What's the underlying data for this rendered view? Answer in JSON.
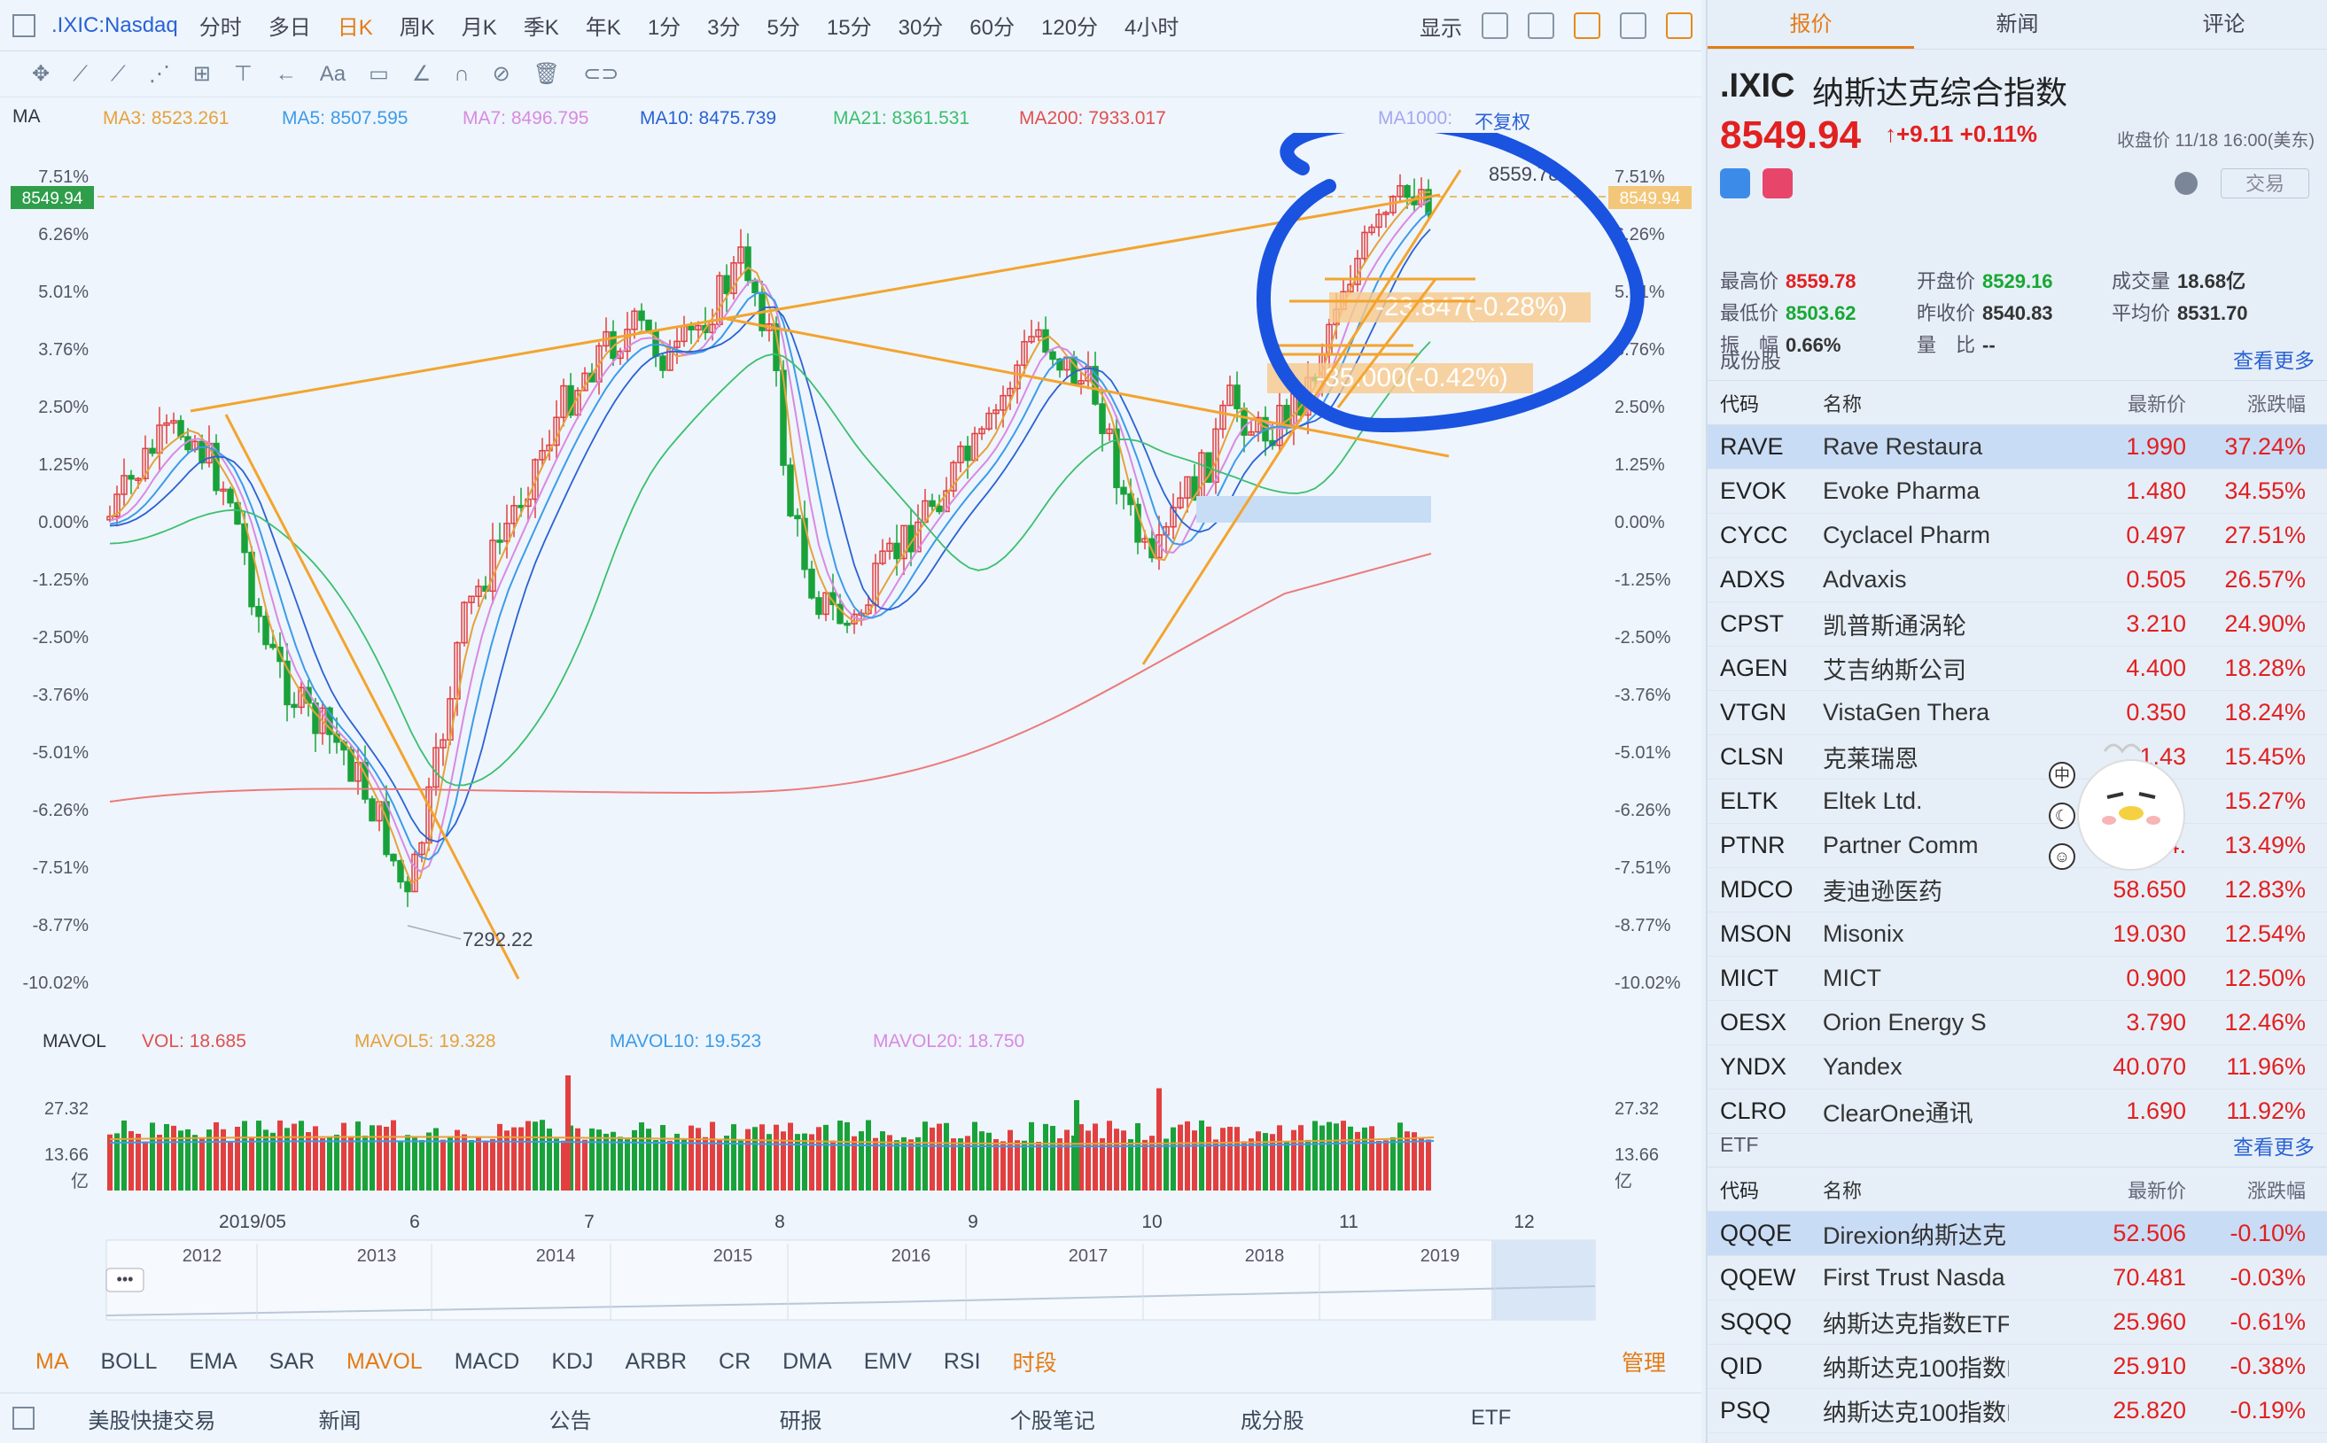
{
  "toolbar": {
    "symbol": ".IXIC:Nasdaq",
    "periods": [
      "分时",
      "多日",
      "日K",
      "周K",
      "月K",
      "季K",
      "年K",
      "1分",
      "3分",
      "5分",
      "15分",
      "30分",
      "60分",
      "120分",
      "4小时"
    ],
    "active_period": "日K",
    "display_label": "显示"
  },
  "draw_tools": [
    "✥",
    "⟋",
    "⟋",
    "⋰",
    "⊞",
    "⊤",
    "←",
    "Aa",
    "▭",
    "∠",
    "∩",
    "⊘",
    "🗑",
    "⊂⊃"
  ],
  "ma": {
    "label": "MA",
    "items": [
      {
        "t": "MA3: 8523.261",
        "c": "#e6a23c"
      },
      {
        "t": "MA5: 8507.595",
        "c": "#3d9be9"
      },
      {
        "t": "MA7: 8496.795",
        "c": "#d98ae0"
      },
      {
        "t": "MA10: 8475.739",
        "c": "#2a62d4"
      },
      {
        "t": "MA21: 8361.531",
        "c": "#3cbf6e"
      },
      {
        "t": "MA200: 7933.017",
        "c": "#e05050"
      },
      {
        "t": "MA1000:",
        "c": "#a3a8f0"
      },
      {
        "t": "不复权",
        "c": "#2a62d4"
      }
    ]
  },
  "chart": {
    "y_axis": [
      "7.51%",
      "6.26%",
      "5.01%",
      "3.76%",
      "2.50%",
      "1.25%",
      "0.00%",
      "-1.25%",
      "-2.50%",
      "-3.76%",
      "-5.01%",
      "-6.26%",
      "-7.51%",
      "-8.77%",
      "-10.02%"
    ],
    "current_price": "8549.94",
    "high_label": "8559.78",
    "low_label": "7292.22",
    "fib1": "-23.847(-0.28%)",
    "fib2": "-35.000(-0.42%)"
  },
  "vol": {
    "label": "MAVOL",
    "items": [
      {
        "t": "VOL: 18.685",
        "c": "#e05050"
      },
      {
        "t": "MAVOL5: 19.328",
        "c": "#e6a23c"
      },
      {
        "t": "MAVOL10: 19.523",
        "c": "#3d9be9"
      },
      {
        "t": "MAVOL20: 18.750",
        "c": "#d98ae0"
      }
    ],
    "ticks": [
      "27.32",
      "13.66",
      "亿"
    ]
  },
  "x_axis": [
    "2019/05",
    "6",
    "7",
    "8",
    "9",
    "10",
    "11",
    "12"
  ],
  "nav_years": [
    "2012",
    "2013",
    "2014",
    "2015",
    "2016",
    "2017",
    "2018",
    "2019"
  ],
  "indicators": {
    "items": [
      "MA",
      "BOLL",
      "EMA",
      "SAR",
      "MAVOL",
      "MACD",
      "KDJ",
      "ARBR",
      "CR",
      "DMA",
      "EMV",
      "RSI",
      "时段"
    ],
    "active": [
      "MA",
      "MAVOL",
      "时段"
    ],
    "manage": "管理"
  },
  "bottom": [
    "美股快捷交易",
    "新闻",
    "公告",
    "研报",
    "个股笔记",
    "成分股",
    "ETF"
  ],
  "rtabs": [
    "报价",
    "新闻",
    "评论"
  ],
  "quote": {
    "code": ".IXIC",
    "name": "纳斯达克综合指数",
    "price": "8549.94",
    "change": "↑+9.11 +0.11%",
    "close_info": "收盘价 11/18 16:00(美东)",
    "trade": "交易",
    "high": "8559.78",
    "low": "8503.62",
    "open": "8529.16",
    "prev": "8540.83",
    "vol": "18.68亿",
    "avg": "8531.70",
    "amp": "0.66%",
    "ratio": "--",
    "labels": {
      "high": "最高价",
      "low": "最低价",
      "open": "开盘价",
      "prev": "昨收价",
      "vol": "成交量",
      "avg": "平均价",
      "amp": "振　幅",
      "ratio": "量　比"
    }
  },
  "components": {
    "title": "成份股",
    "more": "查看更多",
    "headers": [
      "代码",
      "名称",
      "最新价",
      "涨跌幅"
    ],
    "rows": [
      [
        "RAVE",
        "Rave Restaura",
        "1.990",
        "37.24%"
      ],
      [
        "EVOK",
        "Evoke Pharma",
        "1.480",
        "34.55%"
      ],
      [
        "CYCC",
        "Cyclacel Pharm",
        "0.497",
        "27.51%"
      ],
      [
        "ADXS",
        "Advaxis",
        "0.505",
        "26.57%"
      ],
      [
        "CPST",
        "凯普斯通涡轮",
        "3.210",
        "24.90%"
      ],
      [
        "AGEN",
        "艾吉纳斯公司",
        "4.400",
        "18.28%"
      ],
      [
        "VTGN",
        "VistaGen Thera",
        "0.350",
        "18.24%"
      ],
      [
        "CLSN",
        "克莱瑞恩",
        "1.43",
        "15.45%"
      ],
      [
        "ELTK",
        "Eltek Ltd.",
        "4.",
        "15.27%"
      ],
      [
        "PTNR",
        "Partner Comm",
        "4.",
        "13.49%"
      ],
      [
        "MDCO",
        "麦迪逊医药",
        "58.650",
        "12.83%"
      ],
      [
        "MSON",
        "Misonix",
        "19.030",
        "12.54%"
      ],
      [
        "MICT",
        "MICT",
        "0.900",
        "12.50%"
      ],
      [
        "OESX",
        "Orion Energy S",
        "3.790",
        "12.46%"
      ],
      [
        "YNDX",
        "Yandex",
        "40.070",
        "11.96%"
      ],
      [
        "CLRO",
        "ClearOne通讯",
        "1.690",
        "11.92%"
      ]
    ]
  },
  "etf": {
    "title": "ETF",
    "more": "查看更多",
    "headers": [
      "代码",
      "名称",
      "最新价",
      "涨跌幅"
    ],
    "rows": [
      [
        "QQQE",
        "Direxion纳斯达克",
        "52.506",
        "-0.10%"
      ],
      [
        "QQEW",
        "First Trust Nasda",
        "70.481",
        "-0.03%"
      ],
      [
        "SQQQ",
        "纳斯达克指数ETF-",
        "25.960",
        "-0.61%"
      ],
      [
        "QID",
        "纳斯达克100指数I",
        "25.910",
        "-0.38%"
      ],
      [
        "PSQ",
        "纳斯达克100指数I",
        "25.820",
        "-0.19%"
      ]
    ]
  },
  "side_icons": [
    "中",
    "☾",
    "☺"
  ],
  "colors": {
    "up": "#e22020",
    "down": "#17a832",
    "accent": "#e47b15",
    "link": "#2a62d4",
    "annotation": "#1a53e0"
  }
}
